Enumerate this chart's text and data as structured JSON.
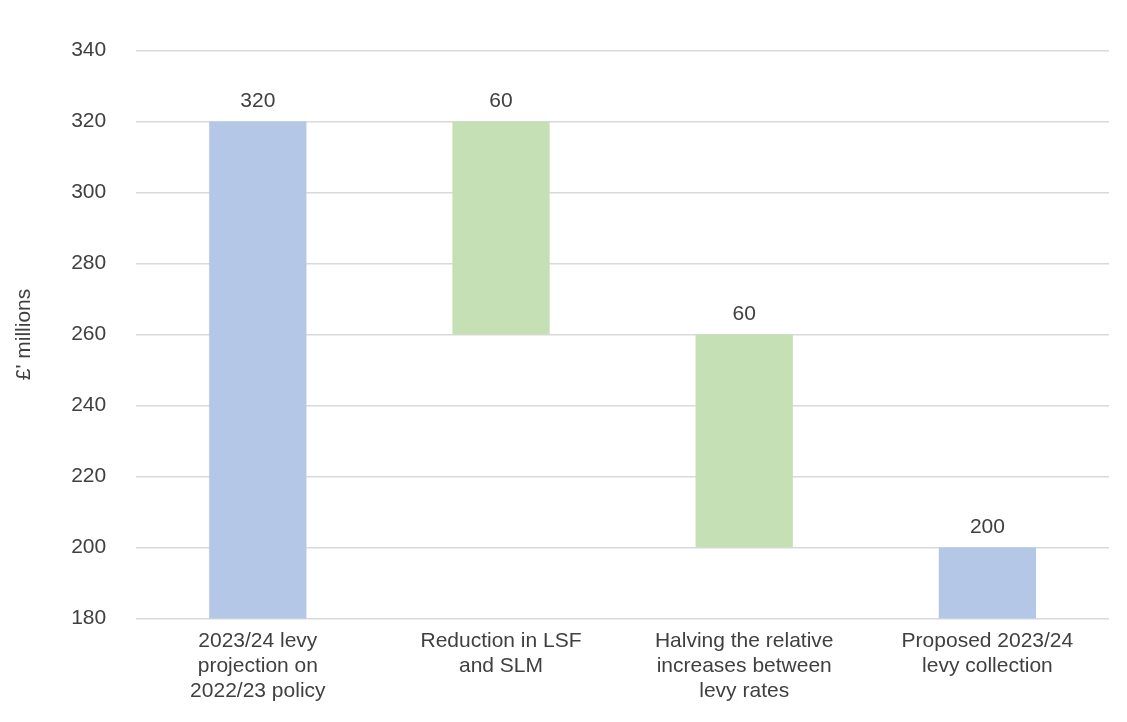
{
  "chart_data": {
    "type": "bar",
    "ylabel": "£' millions",
    "categories": [
      "2023/24 levy projection on 2022/23 policy",
      "Reduction in LSF and SLM",
      "Halving the relative increases between levy rates",
      "Proposed 2023/24 levy collection"
    ],
    "values": [
      320,
      -60,
      -60,
      200
    ],
    "base": [
      null,
      320,
      260,
      null
    ],
    "colors": [
      "#b4c7e7",
      "#c5e0b4",
      "#c5e0b4",
      "#b4c7e7"
    ],
    "value_labels": [
      "320",
      "60",
      "60",
      "200"
    ],
    "ylim": [
      180,
      340
    ],
    "yticks": [
      180,
      200,
      220,
      240,
      260,
      280,
      300,
      320,
      340
    ],
    "grid": "y",
    "legend": false
  }
}
